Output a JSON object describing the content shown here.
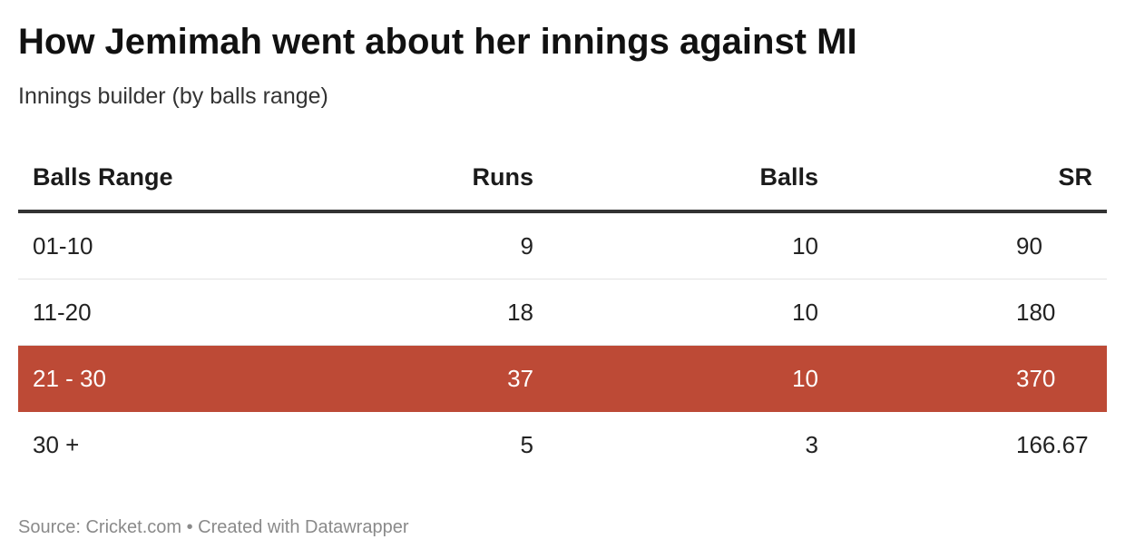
{
  "chart_data": {
    "type": "table",
    "title": "How Jemimah went about her innings against MI",
    "subtitle": "Innings builder (by balls range)",
    "columns": [
      "Balls Range",
      "Runs",
      "Balls",
      "SR"
    ],
    "rows": [
      {
        "range": "01-10",
        "runs": "9",
        "balls": "10",
        "sr": "90"
      },
      {
        "range": "11-20",
        "runs": "18",
        "balls": "10",
        "sr": "180"
      },
      {
        "range": "21 - 30",
        "runs": "37",
        "balls": "10",
        "sr": "370"
      },
      {
        "range": "30 +",
        "runs": "5",
        "balls": "3",
        "sr": "166.67"
      }
    ],
    "highlight_row": 2,
    "highlight_color": "#bd4a36",
    "source": "Source: Cricket.com • Created with Datawrapper"
  }
}
